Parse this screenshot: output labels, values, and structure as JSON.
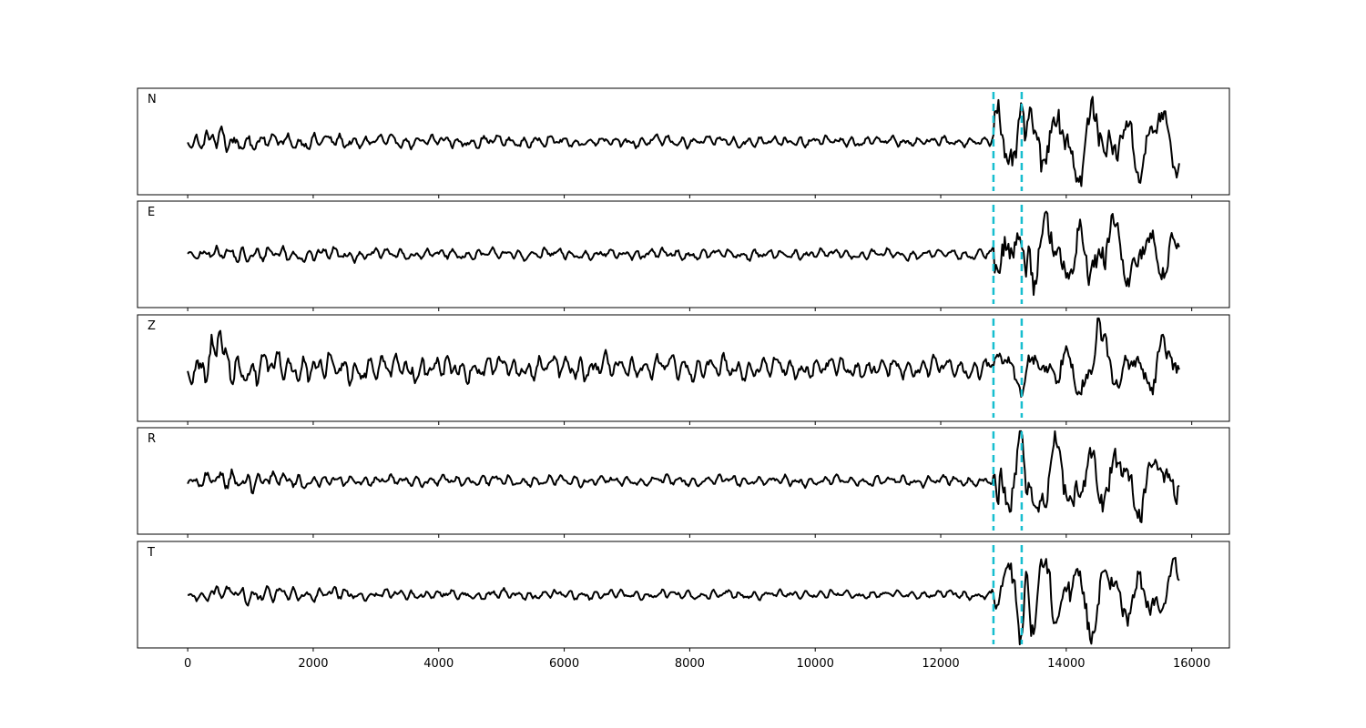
{
  "chart_data": {
    "type": "line",
    "title": "",
    "xlabel": "",
    "ylabel": "",
    "xlim": [
      -800,
      16600
    ],
    "x_ticks": [
      0,
      2000,
      4000,
      6000,
      8000,
      10000,
      12000,
      14000,
      16000
    ],
    "x_tick_labels": [
      "0",
      "2000",
      "4000",
      "6000",
      "8000",
      "10000",
      "12000",
      "14000",
      "16000"
    ],
    "y_ticks_shown": false,
    "grid": false,
    "n_samples": 15800,
    "pick_lines": {
      "color": "#17becf",
      "style": "dashed",
      "x": [
        12840,
        13290
      ]
    },
    "trace_color": "#000000",
    "series": [
      {
        "name": "N",
        "envelope": [
          [
            0,
            0.15
          ],
          [
            500,
            0.35
          ],
          [
            1500,
            0.2
          ],
          [
            3000,
            0.15
          ],
          [
            12800,
            0.12
          ],
          [
            12860,
            0.9
          ],
          [
            13300,
            0.95
          ],
          [
            15800,
            0.7
          ]
        ],
        "spikes": [
          [
            13290,
            0.9
          ]
        ]
      },
      {
        "name": "E",
        "envelope": [
          [
            0,
            0.12
          ],
          [
            500,
            0.2
          ],
          [
            1500,
            0.18
          ],
          [
            3000,
            0.13
          ],
          [
            12800,
            0.12
          ],
          [
            12860,
            0.8
          ],
          [
            13300,
            0.95
          ],
          [
            15800,
            0.7
          ]
        ],
        "spikes": [
          [
            13420,
            0.9
          ]
        ]
      },
      {
        "name": "Z",
        "envelope": [
          [
            0,
            0.25
          ],
          [
            400,
            0.7
          ],
          [
            1000,
            0.45
          ],
          [
            2000,
            0.35
          ],
          [
            5000,
            0.3
          ],
          [
            12800,
            0.25
          ],
          [
            12860,
            0.35
          ],
          [
            13300,
            0.55
          ],
          [
            15800,
            0.6
          ]
        ],
        "spikes": [
          [
            490,
            1.0
          ],
          [
            14500,
            0.9
          ]
        ]
      },
      {
        "name": "R",
        "envelope": [
          [
            0,
            0.12
          ],
          [
            500,
            0.3
          ],
          [
            1500,
            0.18
          ],
          [
            3000,
            0.13
          ],
          [
            12800,
            0.12
          ],
          [
            12860,
            0.9
          ],
          [
            13300,
            0.9
          ],
          [
            15800,
            0.65
          ]
        ],
        "spikes": [
          [
            12900,
            -0.85
          ],
          [
            13280,
            0.8
          ]
        ]
      },
      {
        "name": "T",
        "envelope": [
          [
            0,
            0.1
          ],
          [
            500,
            0.22
          ],
          [
            1500,
            0.18
          ],
          [
            3000,
            0.12
          ],
          [
            12800,
            0.1
          ],
          [
            12860,
            0.4
          ],
          [
            13300,
            0.95
          ],
          [
            15800,
            0.6
          ]
        ],
        "spikes": [
          [
            13380,
            1.0
          ],
          [
            13260,
            -0.8
          ]
        ]
      }
    ]
  }
}
